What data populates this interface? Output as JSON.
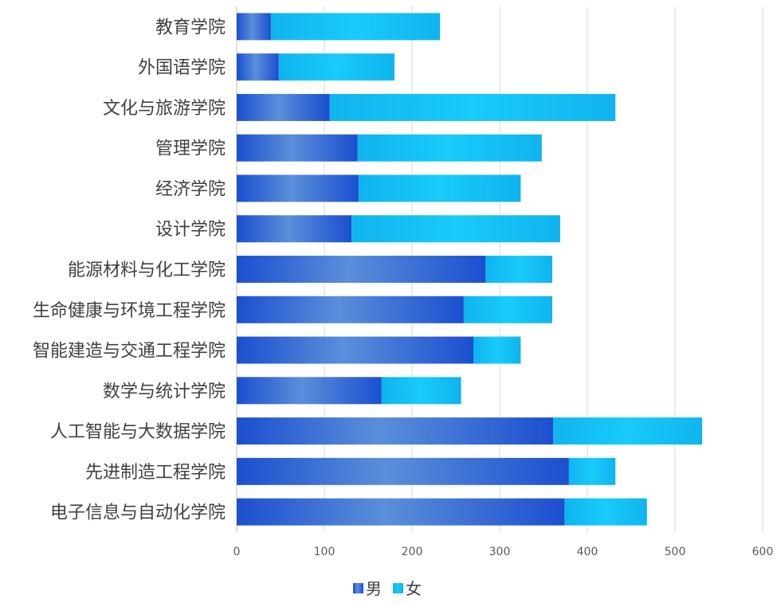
{
  "chart_data": {
    "type": "bar",
    "orientation": "horizontal",
    "stacked": true,
    "title": "",
    "xlabel": "",
    "ylabel": "",
    "xlim": [
      0,
      600
    ],
    "xticks": [
      0,
      100,
      200,
      300,
      400,
      500,
      600
    ],
    "grid": true,
    "legend_position": "bottom",
    "categories": [
      "教育学院",
      "外国语学院",
      "文化与旅游学院",
      "管理学院",
      "经济学院",
      "设计学院",
      "能源材料与化工学院",
      "生命健康与环境工程学院",
      "智能建造与交通工程学院",
      "数学与统计学院",
      "人工智能与大数据学院",
      "先进制造工程学院",
      "电子信息与自动化学院"
    ],
    "series": [
      {
        "name": "男",
        "color": "#1F5BD6",
        "values": [
          39,
          48,
          106,
          138,
          139,
          131,
          284,
          259,
          270,
          165,
          361,
          379,
          374
        ]
      },
      {
        "name": "女",
        "color": "#14C0F5",
        "values": [
          193,
          132,
          326,
          210,
          185,
          238,
          76,
          101,
          54,
          91,
          170,
          53,
          94
        ]
      }
    ]
  }
}
